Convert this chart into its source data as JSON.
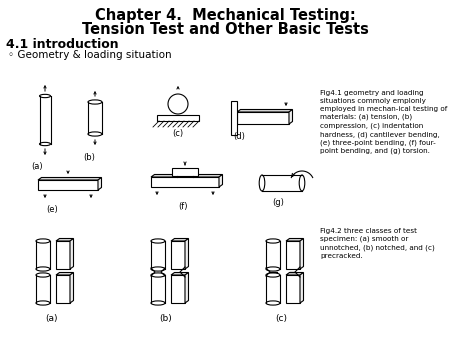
{
  "title_line1": "Chapter 4.  Mechanical Testing:",
  "title_line2": "Tension Test and Other Basic Tests",
  "section": "4.1 introduction",
  "bullet": "◦ Geometry & loading situation",
  "fig1_caption": "Fig4.1 geometry and loading\nsituations commoly emplonly\nemployed in mechan-ical testing of\nmaterials: (a) tension, (b)\ncompression, (c) indentation\nhardness, (d) cantilever bending,\n(e) three-point bending, (f) four-\npoint bending, and (g) torsion.",
  "fig2_caption": "Fig4.2 three classes of test\nspecimen: (a) smooth or\nunnotched, (b) notched, and (c)\nprecracked.",
  "bg_color": "#ffffff",
  "text_color": "#000000",
  "label_a": "(a)",
  "label_b": "(b)",
  "label_c": "(c)",
  "label_d": "(d)",
  "label_e": "(e)",
  "label_f": "(f)",
  "label_g": "(g)"
}
